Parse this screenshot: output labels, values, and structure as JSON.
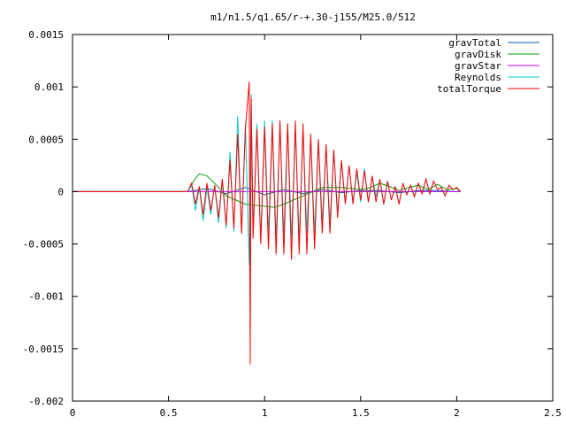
{
  "chart_data": {
    "type": "line",
    "title": "m1/n1.5/q1.65/r-+.30-j155/M25.0/512",
    "xlabel": "",
    "ylabel": "",
    "xlim": [
      0,
      2.5
    ],
    "ylim": [
      -0.002,
      0.0015
    ],
    "x_ticks": [
      0,
      0.5,
      1,
      1.5,
      2,
      2.5
    ],
    "x_tick_labels": [
      "0",
      "0.5",
      "1",
      "1.5",
      "2",
      "2.5"
    ],
    "y_ticks": [
      -0.002,
      -0.0015,
      -0.001,
      -0.0005,
      0,
      0.0005,
      0.001,
      0.0015
    ],
    "y_tick_labels": [
      "-0.002",
      "-0.0015",
      "-0.001",
      "-0.0005",
      "0",
      "0.0005",
      "0.001",
      "0.0015"
    ],
    "grid": false,
    "legend_position": "top-right",
    "series": [
      {
        "name": "gravTotal",
        "color": "#0060ad",
        "x": [
          0,
          0.6,
          0.7,
          0.8,
          0.9,
          1.0,
          1.1,
          1.2,
          1.3,
          1.4,
          1.5,
          1.6,
          1.7,
          1.8,
          1.9,
          2.0,
          2.02
        ],
        "y": [
          0,
          0,
          3e-05,
          -2e-05,
          4e-05,
          -3e-05,
          2e-05,
          -2e-05,
          2e-05,
          -1e-05,
          1e-05,
          1e-05,
          -1e-05,
          1e-05,
          1e-05,
          0,
          0
        ]
      },
      {
        "name": "gravDisk",
        "color": "#00a000",
        "x": [
          0,
          0.6,
          0.63,
          0.66,
          0.7,
          0.75,
          0.8,
          0.85,
          0.9,
          0.95,
          1.0,
          1.05,
          1.1,
          1.15,
          1.2,
          1.3,
          1.4,
          1.5,
          1.55,
          1.6,
          1.65,
          1.7,
          1.75,
          1.8,
          1.85,
          1.9,
          1.95,
          2.0,
          2.02
        ],
        "y": [
          0,
          0,
          0.0001,
          0.00017,
          0.00015,
          6e-05,
          -4e-05,
          -8e-05,
          -0.00012,
          -0.00013,
          -0.00014,
          -0.00015,
          -0.00012,
          -8e-05,
          -4e-05,
          4e-05,
          4e-05,
          2e-05,
          4e-05,
          8e-05,
          5e-05,
          1e-05,
          4e-05,
          6e-05,
          2e-05,
          7e-05,
          2e-05,
          3e-05,
          0
        ]
      },
      {
        "name": "gravStar",
        "color": "#c000ff",
        "x": [
          0,
          2.02
        ],
        "y": [
          0,
          0
        ]
      },
      {
        "name": "Reynolds",
        "color": "#00cccc",
        "x": [
          0,
          0.6,
          0.62,
          0.64,
          0.66,
          0.68,
          0.7,
          0.72,
          0.74,
          0.76,
          0.78,
          0.8,
          0.82,
          0.84,
          0.86,
          0.88,
          0.9,
          0.92,
          0.93,
          0.94,
          0.96,
          0.98,
          1.0,
          1.02,
          1.04,
          1.06,
          1.08,
          1.1,
          1.12,
          1.14,
          1.16,
          1.18,
          1.2,
          1.22,
          1.24,
          1.26,
          1.28,
          1.3,
          1.32,
          1.34,
          1.36,
          1.38,
          1.4,
          1.42,
          1.44,
          1.46,
          1.48,
          1.5,
          1.52,
          1.54,
          1.56,
          1.58,
          1.6,
          1.62,
          1.64,
          1.66,
          1.68,
          1.7,
          1.72,
          1.74,
          1.76,
          1.78,
          1.8,
          1.82,
          1.84,
          1.86,
          1.88,
          1.9,
          1.92,
          1.94,
          1.96,
          1.98,
          2.0,
          2.02
        ],
        "y": [
          0,
          0,
          6e-05,
          -0.00018,
          4e-05,
          -0.00028,
          4e-05,
          -0.00022,
          6e-05,
          -0.0003,
          0.0001,
          -0.00035,
          0.00038,
          -0.00038,
          0.00072,
          -0.0004,
          0.00065,
          -0.0007,
          0.00093,
          -0.0004,
          0.00065,
          -0.00045,
          0.00068,
          -0.00042,
          0.00068,
          -0.00045,
          0.00065,
          -0.00042,
          0.00065,
          -0.00045,
          0.0006,
          -0.00045,
          0.0006,
          -0.0004,
          0.00055,
          -0.0004,
          0.0005,
          -0.0003,
          0.00045,
          -0.0003,
          0.0004,
          -0.0002,
          0.0003,
          -0.0001,
          0.00025,
          -0.0001,
          0.00018,
          -0.0001,
          0.00022,
          -0.0001,
          0.00015,
          -5e-05,
          0.00012,
          -0.00012,
          0.0001,
          -8e-05,
          5e-05,
          -0.00012,
          8e-05,
          -2e-05,
          6e-05,
          -4e-05,
          8e-05,
          -2e-05,
          0.00012,
          -2e-05,
          0.0001,
          2e-05,
          4e-05,
          -4e-05,
          6e-05,
          2e-05,
          4e-05,
          0
        ]
      },
      {
        "name": "totalTorque",
        "color": "#ff0000",
        "x": [
          0,
          0.6,
          0.62,
          0.64,
          0.66,
          0.68,
          0.7,
          0.72,
          0.74,
          0.76,
          0.78,
          0.8,
          0.82,
          0.84,
          0.86,
          0.88,
          0.9,
          0.92,
          0.925,
          0.93,
          0.94,
          0.96,
          0.98,
          1.0,
          1.02,
          1.04,
          1.06,
          1.08,
          1.1,
          1.12,
          1.14,
          1.16,
          1.18,
          1.2,
          1.22,
          1.24,
          1.26,
          1.28,
          1.3,
          1.32,
          1.34,
          1.36,
          1.38,
          1.4,
          1.42,
          1.44,
          1.46,
          1.48,
          1.5,
          1.52,
          1.54,
          1.56,
          1.58,
          1.6,
          1.62,
          1.64,
          1.66,
          1.68,
          1.7,
          1.72,
          1.74,
          1.76,
          1.78,
          1.8,
          1.82,
          1.84,
          1.86,
          1.88,
          1.9,
          1.92,
          1.94,
          1.96,
          1.98,
          2.0,
          2.02
        ],
        "y": [
          0,
          0,
          8e-05,
          -0.00012,
          5e-05,
          -0.00022,
          8e-05,
          -0.00018,
          6e-05,
          -0.00025,
          0.00012,
          -0.00032,
          0.0003,
          -0.00035,
          0.00055,
          -0.0004,
          0.0006,
          0.00105,
          -0.00165,
          0.0009,
          -0.00045,
          0.0006,
          -0.0005,
          0.00062,
          -0.00055,
          0.00065,
          -0.0006,
          0.00068,
          -0.0006,
          0.00065,
          -0.00065,
          0.00068,
          -0.0006,
          0.00065,
          -0.0006,
          0.00055,
          -0.00055,
          0.0005,
          -0.0004,
          0.00045,
          -0.0004,
          0.0004,
          -0.00025,
          0.0003,
          -0.00012,
          0.00025,
          -0.00012,
          0.00022,
          -8e-05,
          0.0002,
          -0.0001,
          0.00015,
          -0.0001,
          0.00012,
          -0.00012,
          0.0001,
          -8e-05,
          5e-05,
          -0.00012,
          8e-05,
          -3e-05,
          6e-05,
          -5e-05,
          8e-05,
          -2e-05,
          0.00012,
          -2e-05,
          0.0001,
          2e-05,
          4e-05,
          -4e-05,
          6e-05,
          2e-05,
          4e-05,
          0
        ]
      }
    ]
  }
}
